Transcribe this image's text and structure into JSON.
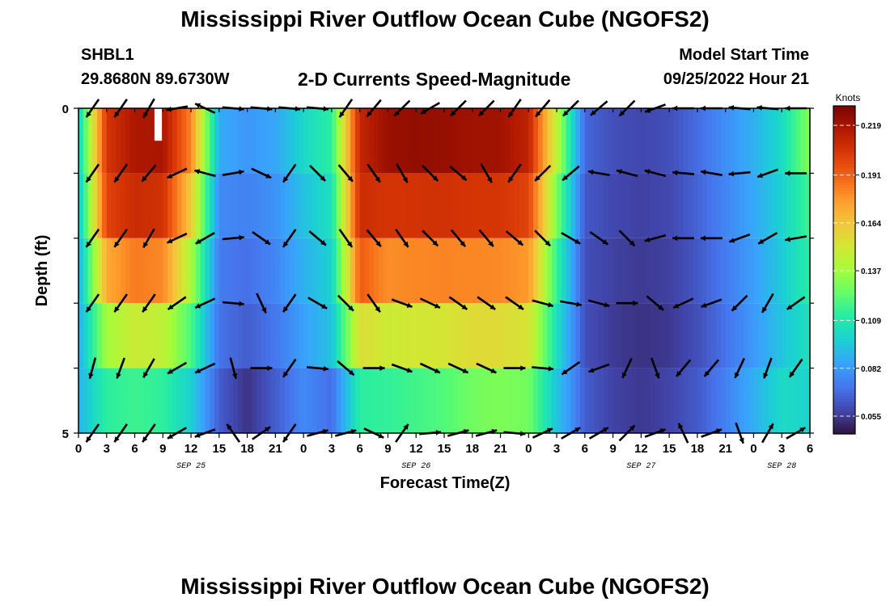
{
  "header": {
    "title": "Mississippi River Outflow Ocean Cube (NGOFS2)",
    "station": "SHBL1",
    "location": "29.8680N  89.6730W",
    "plot_title": "2-D Currents Speed-Magnitude",
    "model_start_label": "Model Start Time",
    "model_start_value": "09/25/2022 Hour 21"
  },
  "footer": {
    "title": "Mississippi River Outflow Ocean Cube (NGOFS2)"
  },
  "chart_data": {
    "type": "heatmap",
    "xlabel": "Forecast Time(Z)",
    "ylabel": "Depth (ft)",
    "x_tick_labels": [
      "0",
      "3",
      "6",
      "9",
      "12",
      "15",
      "18",
      "21",
      "0",
      "3",
      "6",
      "9",
      "12",
      "15",
      "18",
      "21",
      "0",
      "3",
      "6",
      "9",
      "12",
      "15",
      "18",
      "21",
      "0",
      "3",
      "6"
    ],
    "x_date_labels": [
      {
        "label": "SEP 25",
        "tick_index": 4
      },
      {
        "label": "SEP 26",
        "tick_index": 12
      },
      {
        "label": "SEP 27",
        "tick_index": 20
      },
      {
        "label": "SEP 28",
        "tick_index": 25
      }
    ],
    "y_tick_labels": [
      "0",
      "5"
    ],
    "y_range": [
      0,
      5
    ],
    "colorbar": {
      "unit": "Knots",
      "min": 0.045,
      "max": 0.23,
      "ticks": [
        0.219,
        0.191,
        0.164,
        0.137,
        0.109,
        0.082,
        0.055
      ],
      "colors": [
        "#30123b",
        "#4145ab",
        "#4675ed",
        "#39a2fc",
        "#1bcfd4",
        "#24eca6",
        "#61fc6c",
        "#a4fc3b",
        "#d1e834",
        "#f3c63a",
        "#fe9b2d",
        "#f36315",
        "#d93806",
        "#b11901",
        "#7a0402"
      ]
    },
    "depth_levels": 5,
    "time_hours": [
      0,
      3,
      6,
      9,
      12,
      15,
      18,
      21,
      24,
      27,
      30,
      33,
      36,
      39,
      42,
      45,
      48,
      51,
      54,
      57,
      60,
      63,
      66,
      69,
      72,
      75,
      78
    ],
    "speed_knots": [
      [
        0.1,
        0.205,
        0.218,
        0.222,
        0.19,
        0.095,
        0.085,
        0.09,
        0.105,
        0.115,
        0.21,
        0.225,
        0.228,
        0.226,
        0.224,
        0.223,
        0.215,
        0.15,
        0.07,
        0.062,
        0.06,
        0.062,
        0.07,
        0.08,
        0.09,
        0.105,
        0.145
      ],
      [
        0.095,
        0.205,
        0.218,
        0.215,
        0.175,
        0.08,
        0.078,
        0.082,
        0.098,
        0.11,
        0.212,
        0.22,
        0.22,
        0.22,
        0.218,
        0.218,
        0.21,
        0.14,
        0.065,
        0.06,
        0.058,
        0.06,
        0.068,
        0.078,
        0.088,
        0.1,
        0.12
      ],
      [
        0.09,
        0.195,
        0.2,
        0.198,
        0.15,
        0.075,
        0.072,
        0.078,
        0.09,
        0.1,
        0.205,
        0.19,
        0.192,
        0.193,
        0.192,
        0.192,
        0.19,
        0.12,
        0.062,
        0.058,
        0.056,
        0.058,
        0.065,
        0.075,
        0.085,
        0.098,
        0.115
      ],
      [
        0.085,
        0.15,
        0.17,
        0.165,
        0.13,
        0.072,
        0.068,
        0.075,
        0.088,
        0.098,
        0.18,
        0.17,
        0.172,
        0.172,
        0.172,
        0.17,
        0.165,
        0.11,
        0.06,
        0.056,
        0.055,
        0.056,
        0.062,
        0.072,
        0.082,
        0.095,
        0.11
      ],
      [
        0.09,
        0.125,
        0.128,
        0.126,
        0.11,
        0.07,
        0.062,
        0.07,
        0.08,
        0.09,
        0.13,
        0.128,
        0.13,
        0.132,
        0.14,
        0.142,
        0.14,
        0.1,
        0.062,
        0.055,
        0.052,
        0.054,
        0.06,
        0.07,
        0.082,
        0.095,
        0.1
      ],
      [
        0.09,
        0.1,
        0.105,
        0.1,
        0.088,
        0.06,
        0.045,
        0.06,
        0.075,
        0.05,
        0.095,
        0.1,
        0.105,
        0.11,
        0.115,
        0.118,
        0.115,
        0.09,
        0.068,
        0.06,
        0.058,
        0.062,
        0.068,
        0.08,
        0.095,
        0.11,
        0.1
      ]
    ],
    "vector_times": [
      1.5,
      4.5,
      7.5,
      10.5,
      13.5,
      16.5,
      19.5,
      22.5,
      25.5,
      28.5,
      31.5,
      34.5,
      37.5,
      40.5,
      43.5,
      46.5,
      49.5,
      52.5,
      55.5,
      58.5,
      61.5,
      64.5,
      67.5,
      70.5,
      73.5,
      76.5
    ],
    "vector_depth_levels": [
      0,
      1,
      2,
      3,
      4,
      5
    ],
    "vector_directions_deg": [
      [
        215,
        215,
        210,
        260,
        295,
        95,
        95,
        95,
        95,
        215,
        220,
        225,
        240,
        225,
        225,
        215,
        220,
        225,
        230,
        225,
        250,
        270,
        270,
        275,
        275,
        270
      ],
      [
        215,
        215,
        220,
        245,
        285,
        80,
        115,
        215,
        135,
        140,
        145,
        150,
        135,
        130,
        150,
        215,
        225,
        230,
        280,
        285,
        285,
        275,
        280,
        265,
        250,
        270
      ],
      [
        215,
        215,
        210,
        245,
        240,
        85,
        125,
        215,
        130,
        145,
        140,
        145,
        135,
        140,
        140,
        130,
        135,
        120,
        125,
        135,
        255,
        270,
        270,
        250,
        240,
        260
      ],
      [
        215,
        215,
        215,
        235,
        245,
        95,
        155,
        215,
        120,
        135,
        145,
        110,
        115,
        125,
        125,
        125,
        105,
        100,
        105,
        90,
        130,
        245,
        250,
        225,
        210,
        235
      ],
      [
        195,
        200,
        210,
        240,
        245,
        165,
        90,
        215,
        95,
        130,
        90,
        110,
        115,
        115,
        115,
        90,
        95,
        235,
        250,
        205,
        160,
        220,
        220,
        205,
        200,
        215
      ],
      [
        215,
        215,
        215,
        240,
        250,
        325,
        55,
        215,
        75,
        75,
        115,
        35,
        85,
        75,
        75,
        95,
        65,
        60,
        60,
        45,
        70,
        335,
        70,
        160,
        30,
        60
      ]
    ]
  }
}
